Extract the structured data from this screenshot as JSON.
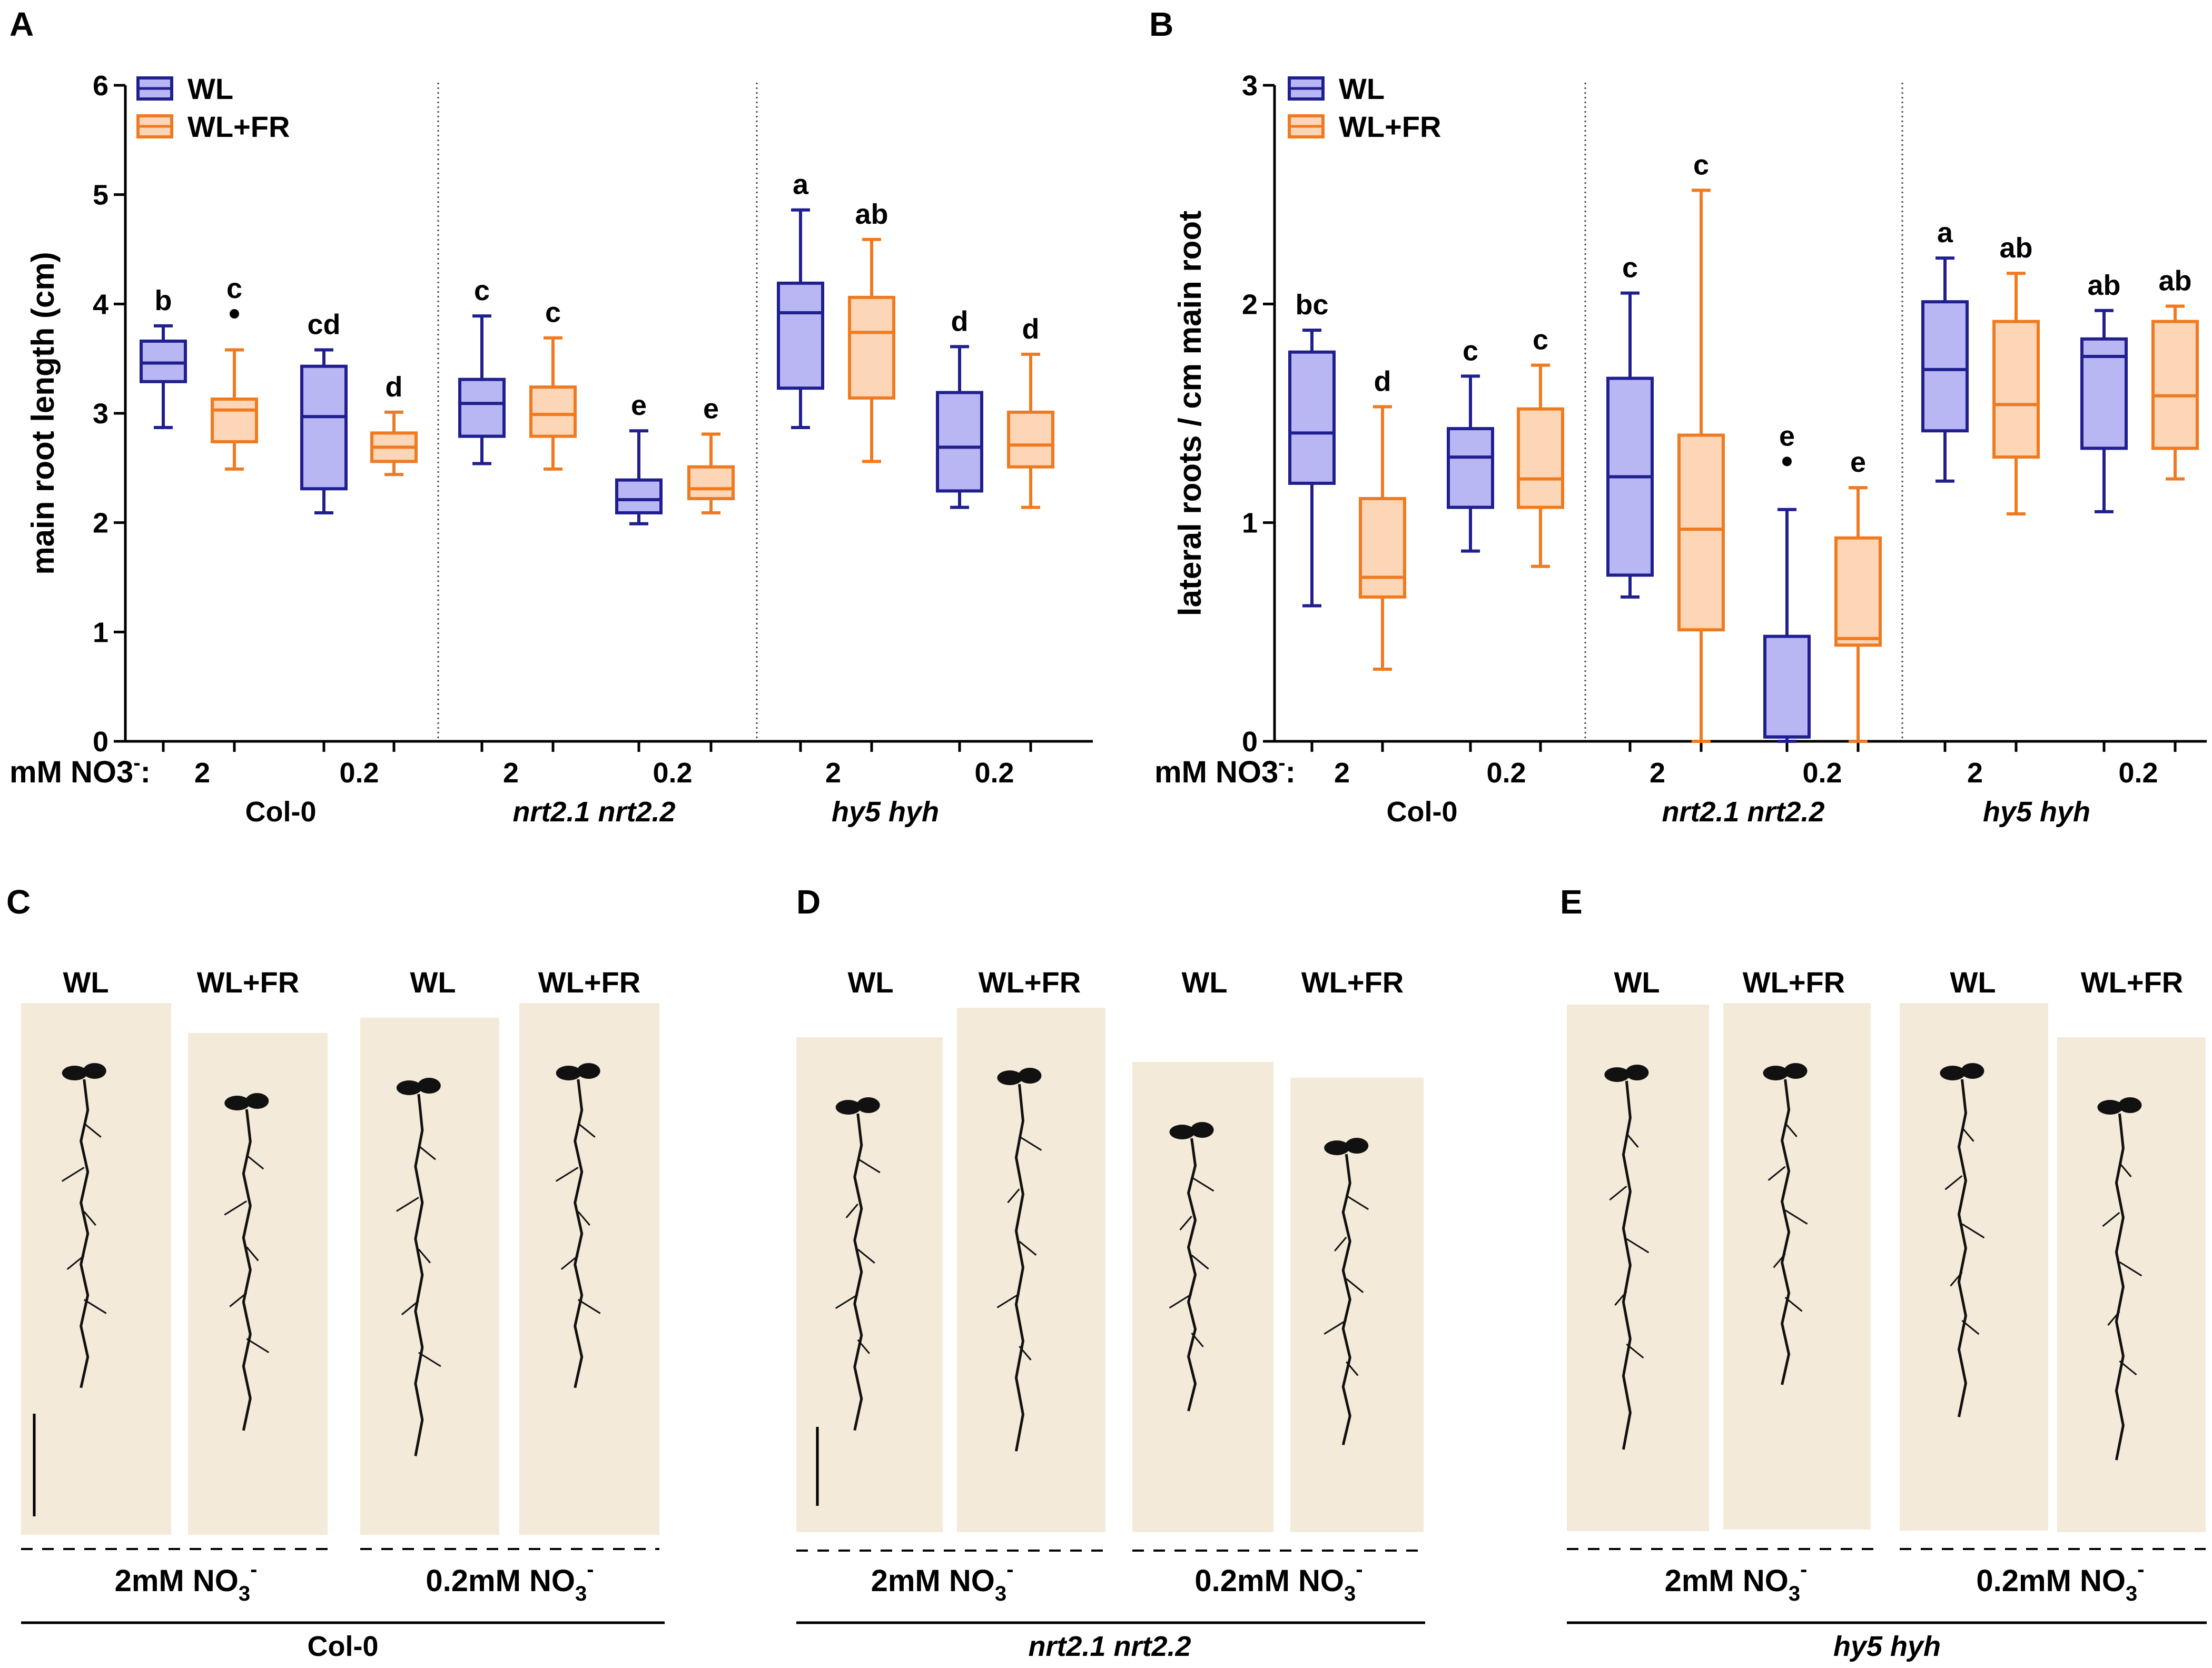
{
  "colors": {
    "wl_stroke": "#1f1f8f",
    "wl_fill": "#b9b6f4",
    "wlfr_stroke": "#f07a1f",
    "wlfr_fill": "#fcd6b6",
    "photo_bg": "#f3ead9",
    "plant": "#111111"
  },
  "chart_data": [
    {
      "panel": "A",
      "type": "box",
      "ylabel": "main root length (cm)",
      "ylim": [
        0,
        6
      ],
      "yticks": [
        "0",
        "1",
        "2",
        "3",
        "4",
        "5",
        "6"
      ],
      "legend": [
        "WL",
        "WL+FR"
      ],
      "x_prefix": "mM NO3",
      "x_prefix_sup": "-",
      "x_prefix_colon": ":",
      "concentration_labels": [
        "2",
        "0.2",
        "2",
        "0.2",
        "2",
        "0.2"
      ],
      "genotypes": [
        "Col-0",
        "nrt2.1 nrt2.2",
        "hy5 hyh"
      ],
      "boxes": [
        {
          "series": "WL",
          "genotype": "Col-0",
          "no3": "2",
          "min": 2.87,
          "q1": 3.29,
          "median": 3.46,
          "q3": 3.66,
          "max": 3.8,
          "letter": "b",
          "outlier": null
        },
        {
          "series": "WL+FR",
          "genotype": "Col-0",
          "no3": "2",
          "min": 2.49,
          "q1": 2.74,
          "median": 3.03,
          "q3": 3.13,
          "max": 3.58,
          "letter": "c",
          "outlier": 3.91
        },
        {
          "series": "WL",
          "genotype": "Col-0",
          "no3": "0.2",
          "min": 2.09,
          "q1": 2.31,
          "median": 2.97,
          "q3": 3.43,
          "max": 3.58,
          "letter": "cd",
          "outlier": null
        },
        {
          "series": "WL+FR",
          "genotype": "Col-0",
          "no3": "0.2",
          "min": 2.44,
          "q1": 2.56,
          "median": 2.69,
          "q3": 2.82,
          "max": 3.01,
          "letter": "d",
          "outlier": null
        },
        {
          "series": "WL",
          "genotype": "nrt2.1 nrt2.2",
          "no3": "2",
          "min": 2.54,
          "q1": 2.79,
          "median": 3.09,
          "q3": 3.31,
          "max": 3.89,
          "letter": "c",
          "outlier": null
        },
        {
          "series": "WL+FR",
          "genotype": "nrt2.1 nrt2.2",
          "no3": "2",
          "min": 2.49,
          "q1": 2.79,
          "median": 2.99,
          "q3": 3.24,
          "max": 3.69,
          "letter": "c",
          "outlier": null
        },
        {
          "series": "WL",
          "genotype": "nrt2.1 nrt2.2",
          "no3": "0.2",
          "min": 1.99,
          "q1": 2.09,
          "median": 2.21,
          "q3": 2.39,
          "max": 2.84,
          "letter": "e",
          "outlier": null
        },
        {
          "series": "WL+FR",
          "genotype": "nrt2.1 nrt2.2",
          "no3": "0.2",
          "min": 2.09,
          "q1": 2.22,
          "median": 2.31,
          "q3": 2.51,
          "max": 2.81,
          "letter": "e",
          "outlier": null
        },
        {
          "series": "WL",
          "genotype": "hy5 hyh",
          "no3": "2",
          "min": 2.87,
          "q1": 3.23,
          "median": 3.92,
          "q3": 4.19,
          "max": 4.86,
          "letter": "a",
          "outlier": null
        },
        {
          "series": "WL+FR",
          "genotype": "hy5 hyh",
          "no3": "2",
          "min": 2.56,
          "q1": 3.14,
          "median": 3.74,
          "q3": 4.06,
          "max": 4.59,
          "letter": "ab",
          "outlier": null
        },
        {
          "series": "WL",
          "genotype": "hy5 hyh",
          "no3": "0.2",
          "min": 2.14,
          "q1": 2.29,
          "median": 2.69,
          "q3": 3.19,
          "max": 3.61,
          "letter": "d",
          "outlier": null
        },
        {
          "series": "WL+FR",
          "genotype": "hy5 hyh",
          "no3": "0.2",
          "min": 2.14,
          "q1": 2.51,
          "median": 2.71,
          "q3": 3.01,
          "max": 3.54,
          "letter": "d",
          "outlier": null
        }
      ]
    },
    {
      "panel": "B",
      "type": "box",
      "ylabel": "lateral roots / cm main root",
      "ylim": [
        0,
        3
      ],
      "yticks": [
        "0",
        "1",
        "2",
        "3"
      ],
      "legend": [
        "WL",
        "WL+FR"
      ],
      "x_prefix": "mM NO3",
      "x_prefix_sup": "-",
      "x_prefix_colon": ":",
      "concentration_labels": [
        "2",
        "0.2",
        "2",
        "0.2",
        "2",
        "0.2"
      ],
      "genotypes": [
        "Col-0",
        "nrt2.1 nrt2.2",
        "hy5 hyh"
      ],
      "boxes": [
        {
          "series": "WL",
          "genotype": "Col-0",
          "no3": "2",
          "min": 0.62,
          "q1": 1.18,
          "median": 1.41,
          "q3": 1.78,
          "max": 1.88,
          "letter": "bc",
          "outlier": null
        },
        {
          "series": "WL+FR",
          "genotype": "Col-0",
          "no3": "2",
          "min": 0.33,
          "q1": 0.66,
          "median": 0.75,
          "q3": 1.11,
          "max": 1.53,
          "letter": "d",
          "outlier": null
        },
        {
          "series": "WL",
          "genotype": "Col-0",
          "no3": "0.2",
          "min": 0.87,
          "q1": 1.07,
          "median": 1.3,
          "q3": 1.43,
          "max": 1.67,
          "letter": "c",
          "outlier": null
        },
        {
          "series": "WL+FR",
          "genotype": "Col-0",
          "no3": "0.2",
          "min": 0.8,
          "q1": 1.07,
          "median": 1.2,
          "q3": 1.52,
          "max": 1.72,
          "letter": "c",
          "outlier": null
        },
        {
          "series": "WL",
          "genotype": "nrt2.1 nrt2.2",
          "no3": "2",
          "min": 0.66,
          "q1": 0.76,
          "median": 1.21,
          "q3": 1.66,
          "max": 2.05,
          "letter": "c",
          "outlier": null
        },
        {
          "series": "WL+FR",
          "genotype": "nrt2.1 nrt2.2",
          "no3": "2",
          "min": 0.0,
          "q1": 0.51,
          "median": 0.97,
          "q3": 1.4,
          "max": 2.52,
          "letter": "c",
          "outlier": null
        },
        {
          "series": "WL",
          "genotype": "nrt2.1 nrt2.2",
          "no3": "0.2",
          "min": 0.0,
          "q1": 0.02,
          "median": 0.02,
          "q3": 0.48,
          "max": 1.06,
          "letter": "e",
          "outlier": 1.28
        },
        {
          "series": "WL+FR",
          "genotype": "nrt2.1 nrt2.2",
          "no3": "0.2",
          "min": 0.0,
          "q1": 0.44,
          "median": 0.47,
          "q3": 0.93,
          "max": 1.16,
          "letter": "e",
          "outlier": null
        },
        {
          "series": "WL",
          "genotype": "hy5 hyh",
          "no3": "2",
          "min": 1.19,
          "q1": 1.42,
          "median": 1.7,
          "q3": 2.01,
          "max": 2.21,
          "letter": "a",
          "outlier": null
        },
        {
          "series": "WL+FR",
          "genotype": "hy5 hyh",
          "no3": "2",
          "min": 1.04,
          "q1": 1.3,
          "median": 1.54,
          "q3": 1.92,
          "max": 2.14,
          "letter": "ab",
          "outlier": null
        },
        {
          "series": "WL",
          "genotype": "hy5 hyh",
          "no3": "0.2",
          "min": 1.05,
          "q1": 1.34,
          "median": 1.76,
          "q3": 1.84,
          "max": 1.97,
          "letter": "ab",
          "outlier": null
        },
        {
          "series": "WL+FR",
          "genotype": "hy5 hyh",
          "no3": "0.2",
          "min": 1.2,
          "q1": 1.34,
          "median": 1.58,
          "q3": 1.92,
          "max": 1.99,
          "letter": "ab",
          "outlier": null
        }
      ]
    }
  ],
  "photo_panels": [
    {
      "letter": "C",
      "labels": [
        "WL",
        "WL+FR",
        "WL",
        "WL+FR"
      ],
      "cond_2": "2mM NO",
      "cond_02": "0.2mM NO",
      "sub": "3",
      "sup": "-",
      "genotype": "Col-0",
      "italic": false
    },
    {
      "letter": "D",
      "labels": [
        "WL",
        "WL+FR",
        "WL",
        "WL+FR"
      ],
      "cond_2": "2mM NO",
      "cond_02": "0.2mM NO",
      "sub": "3",
      "sup": "-",
      "genotype": "nrt2.1 nrt2.2",
      "italic": true
    },
    {
      "letter": "E",
      "labels": [
        "WL",
        "WL+FR",
        "WL",
        "WL+FR"
      ],
      "cond_2": "2mM NO",
      "cond_02": "0.2mM NO",
      "sub": "3",
      "sup": "-",
      "genotype": "hy5 hyh",
      "italic": true
    }
  ]
}
